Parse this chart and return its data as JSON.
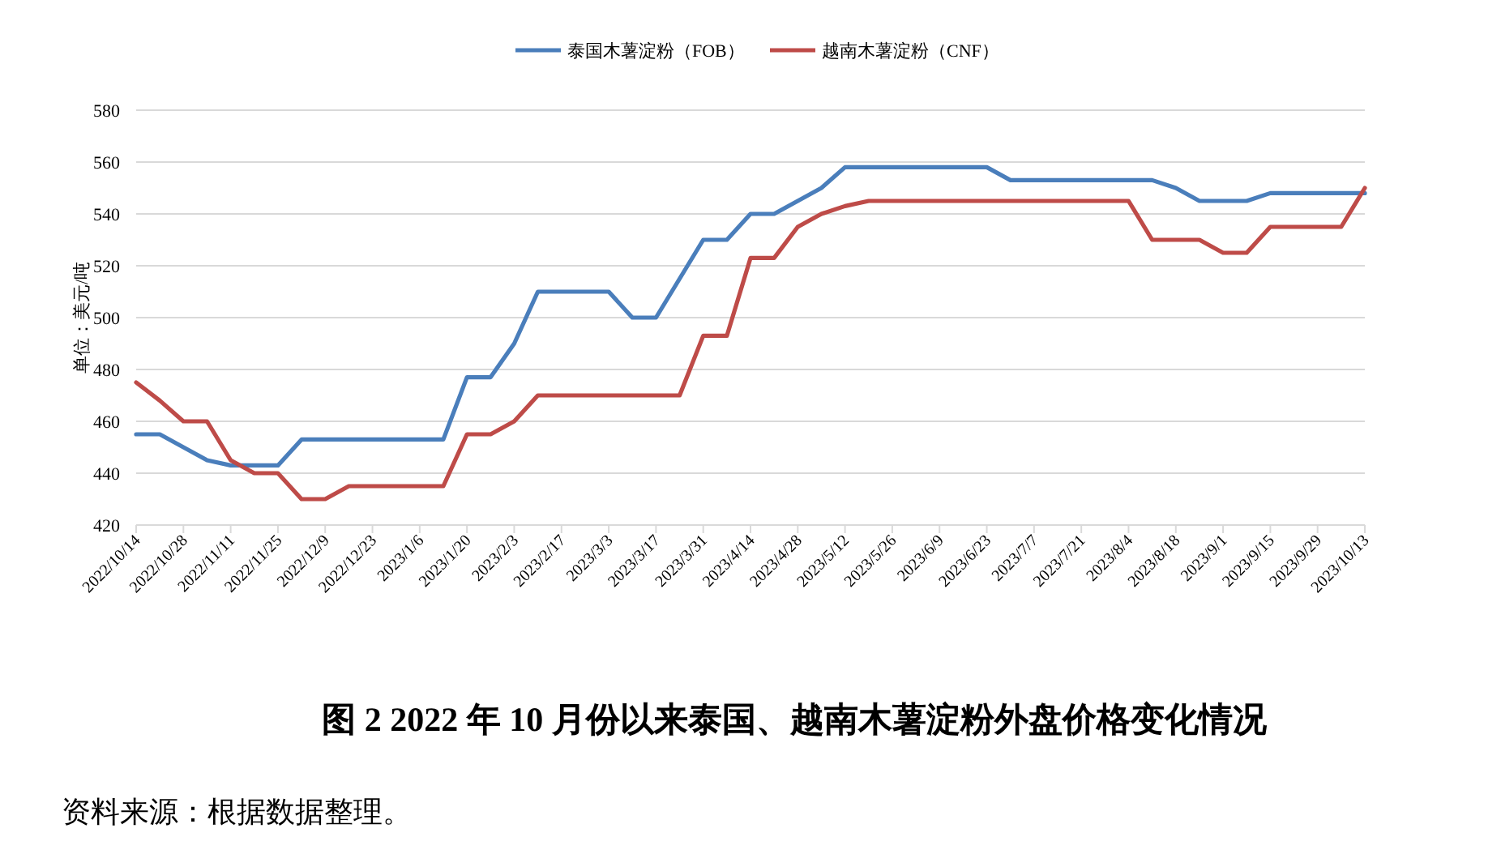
{
  "chart_data": {
    "type": "line",
    "title": "图 2  2022 年 10 月份以来泰国、越南木薯淀粉外盘价格变化情况",
    "ylabel": "单位：美元/吨",
    "annotations": [
      "资料来源：根据数据整理。"
    ],
    "categories": [
      "2022/10/14",
      null,
      "2022/10/28",
      null,
      "2022/11/11",
      null,
      "2022/11/25",
      null,
      "2022/12/9",
      null,
      "2022/12/23",
      null,
      "2023/1/6",
      null,
      "2023/1/20",
      null,
      "2023/2/3",
      null,
      "2023/2/17",
      null,
      "2023/3/3",
      null,
      "2023/3/17",
      null,
      "2023/3/31",
      null,
      "2023/4/14",
      null,
      "2023/4/28",
      null,
      "2023/5/12",
      null,
      "2023/5/26",
      null,
      "2023/6/9",
      null,
      "2023/6/23",
      null,
      "2023/7/7",
      null,
      "2023/7/21",
      null,
      "2023/8/4",
      null,
      "2023/8/18",
      null,
      "2023/9/1",
      null,
      "2023/9/15",
      null,
      "2023/9/29",
      null,
      "2023/10/13"
    ],
    "series": [
      {
        "name": "泰国木薯淀粉（FOB）",
        "color": "#4a7ebb",
        "values": [
          455,
          455,
          450,
          445,
          443,
          443,
          443,
          453,
          453,
          453,
          453,
          453,
          453,
          453,
          477,
          477,
          490,
          510,
          510,
          510,
          510,
          500,
          500,
          515,
          530,
          530,
          540,
          540,
          545,
          550,
          558,
          558,
          558,
          558,
          558,
          558,
          558,
          553,
          553,
          553,
          553,
          553,
          553,
          553,
          550,
          545,
          545,
          545,
          548,
          548,
          548,
          548,
          548
        ]
      },
      {
        "name": "越南木薯淀粉（CNF）",
        "color": "#be4b48",
        "values": [
          475,
          468,
          460,
          460,
          445,
          440,
          440,
          430,
          430,
          435,
          435,
          435,
          435,
          435,
          455,
          455,
          460,
          470,
          470,
          470,
          470,
          470,
          470,
          470,
          493,
          493,
          523,
          523,
          535,
          540,
          543,
          545,
          545,
          545,
          545,
          545,
          545,
          545,
          545,
          545,
          545,
          545,
          545,
          530,
          530,
          530,
          525,
          525,
          535,
          535,
          535,
          535,
          550
        ]
      }
    ],
    "ylim": [
      420,
      580
    ],
    "yticks": [
      420,
      440,
      460,
      480,
      500,
      520,
      540,
      560,
      580
    ],
    "grid": "y",
    "legend": "top",
    "marker": "none",
    "line_style": "solid"
  }
}
